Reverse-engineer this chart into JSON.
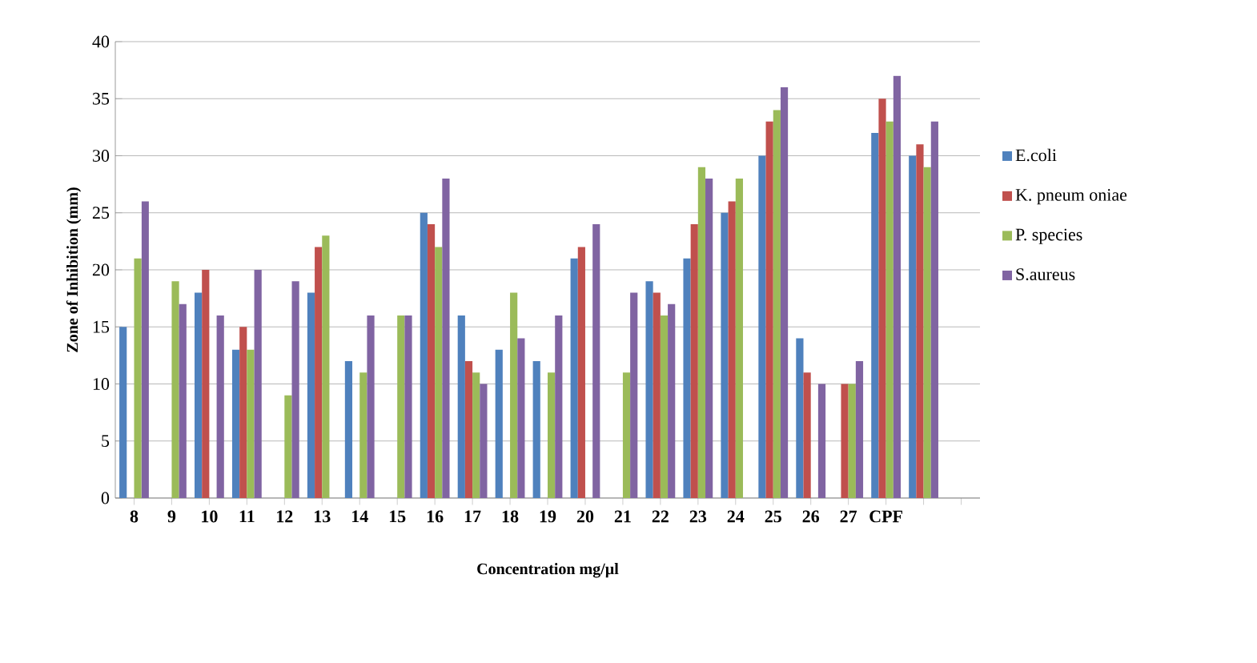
{
  "chart_data": {
    "type": "bar",
    "xlabel": "Concentration mg/µl",
    "ylabel": "Zone of Inhibition (mm)",
    "categories": [
      "8",
      "9",
      "10",
      "11",
      "12",
      "13",
      "14",
      "15",
      "16",
      "17",
      "18",
      "19",
      "20",
      "21",
      "22",
      "23",
      "24",
      "25",
      "26",
      "27",
      "CPF",
      null,
      null
    ],
    "series": [
      {
        "name": "E.coli",
        "color": "#4f81bd",
        "values": [
          15,
          null,
          18,
          13,
          null,
          18,
          12,
          null,
          25,
          16,
          13,
          12,
          21,
          null,
          19,
          21,
          25,
          30,
          14,
          null,
          32,
          30,
          null
        ]
      },
      {
        "name": "K. pneum oniae",
        "color": "#c0504d",
        "values": [
          null,
          null,
          20,
          15,
          null,
          22,
          null,
          null,
          24,
          12,
          null,
          null,
          22,
          null,
          18,
          24,
          26,
          33,
          11,
          10,
          35,
          31,
          null
        ]
      },
      {
        "name": "P. species",
        "color": "#9bbb59",
        "values": [
          21,
          19,
          null,
          13,
          9,
          23,
          11,
          16,
          22,
          11,
          18,
          11,
          null,
          11,
          16,
          29,
          28,
          34,
          null,
          10,
          33,
          29,
          null
        ]
      },
      {
        "name": "S.aureus",
        "color": "#8064a2",
        "values": [
          26,
          17,
          16,
          20,
          19,
          null,
          16,
          16,
          28,
          10,
          14,
          16,
          24,
          18,
          17,
          28,
          null,
          36,
          10,
          12,
          37,
          33,
          null
        ]
      }
    ],
    "ylim": [
      0,
      40
    ],
    "yticks": [
      0,
      5,
      10,
      15,
      20,
      25,
      30,
      35,
      40
    ],
    "grid": "y",
    "legend": "right"
  }
}
